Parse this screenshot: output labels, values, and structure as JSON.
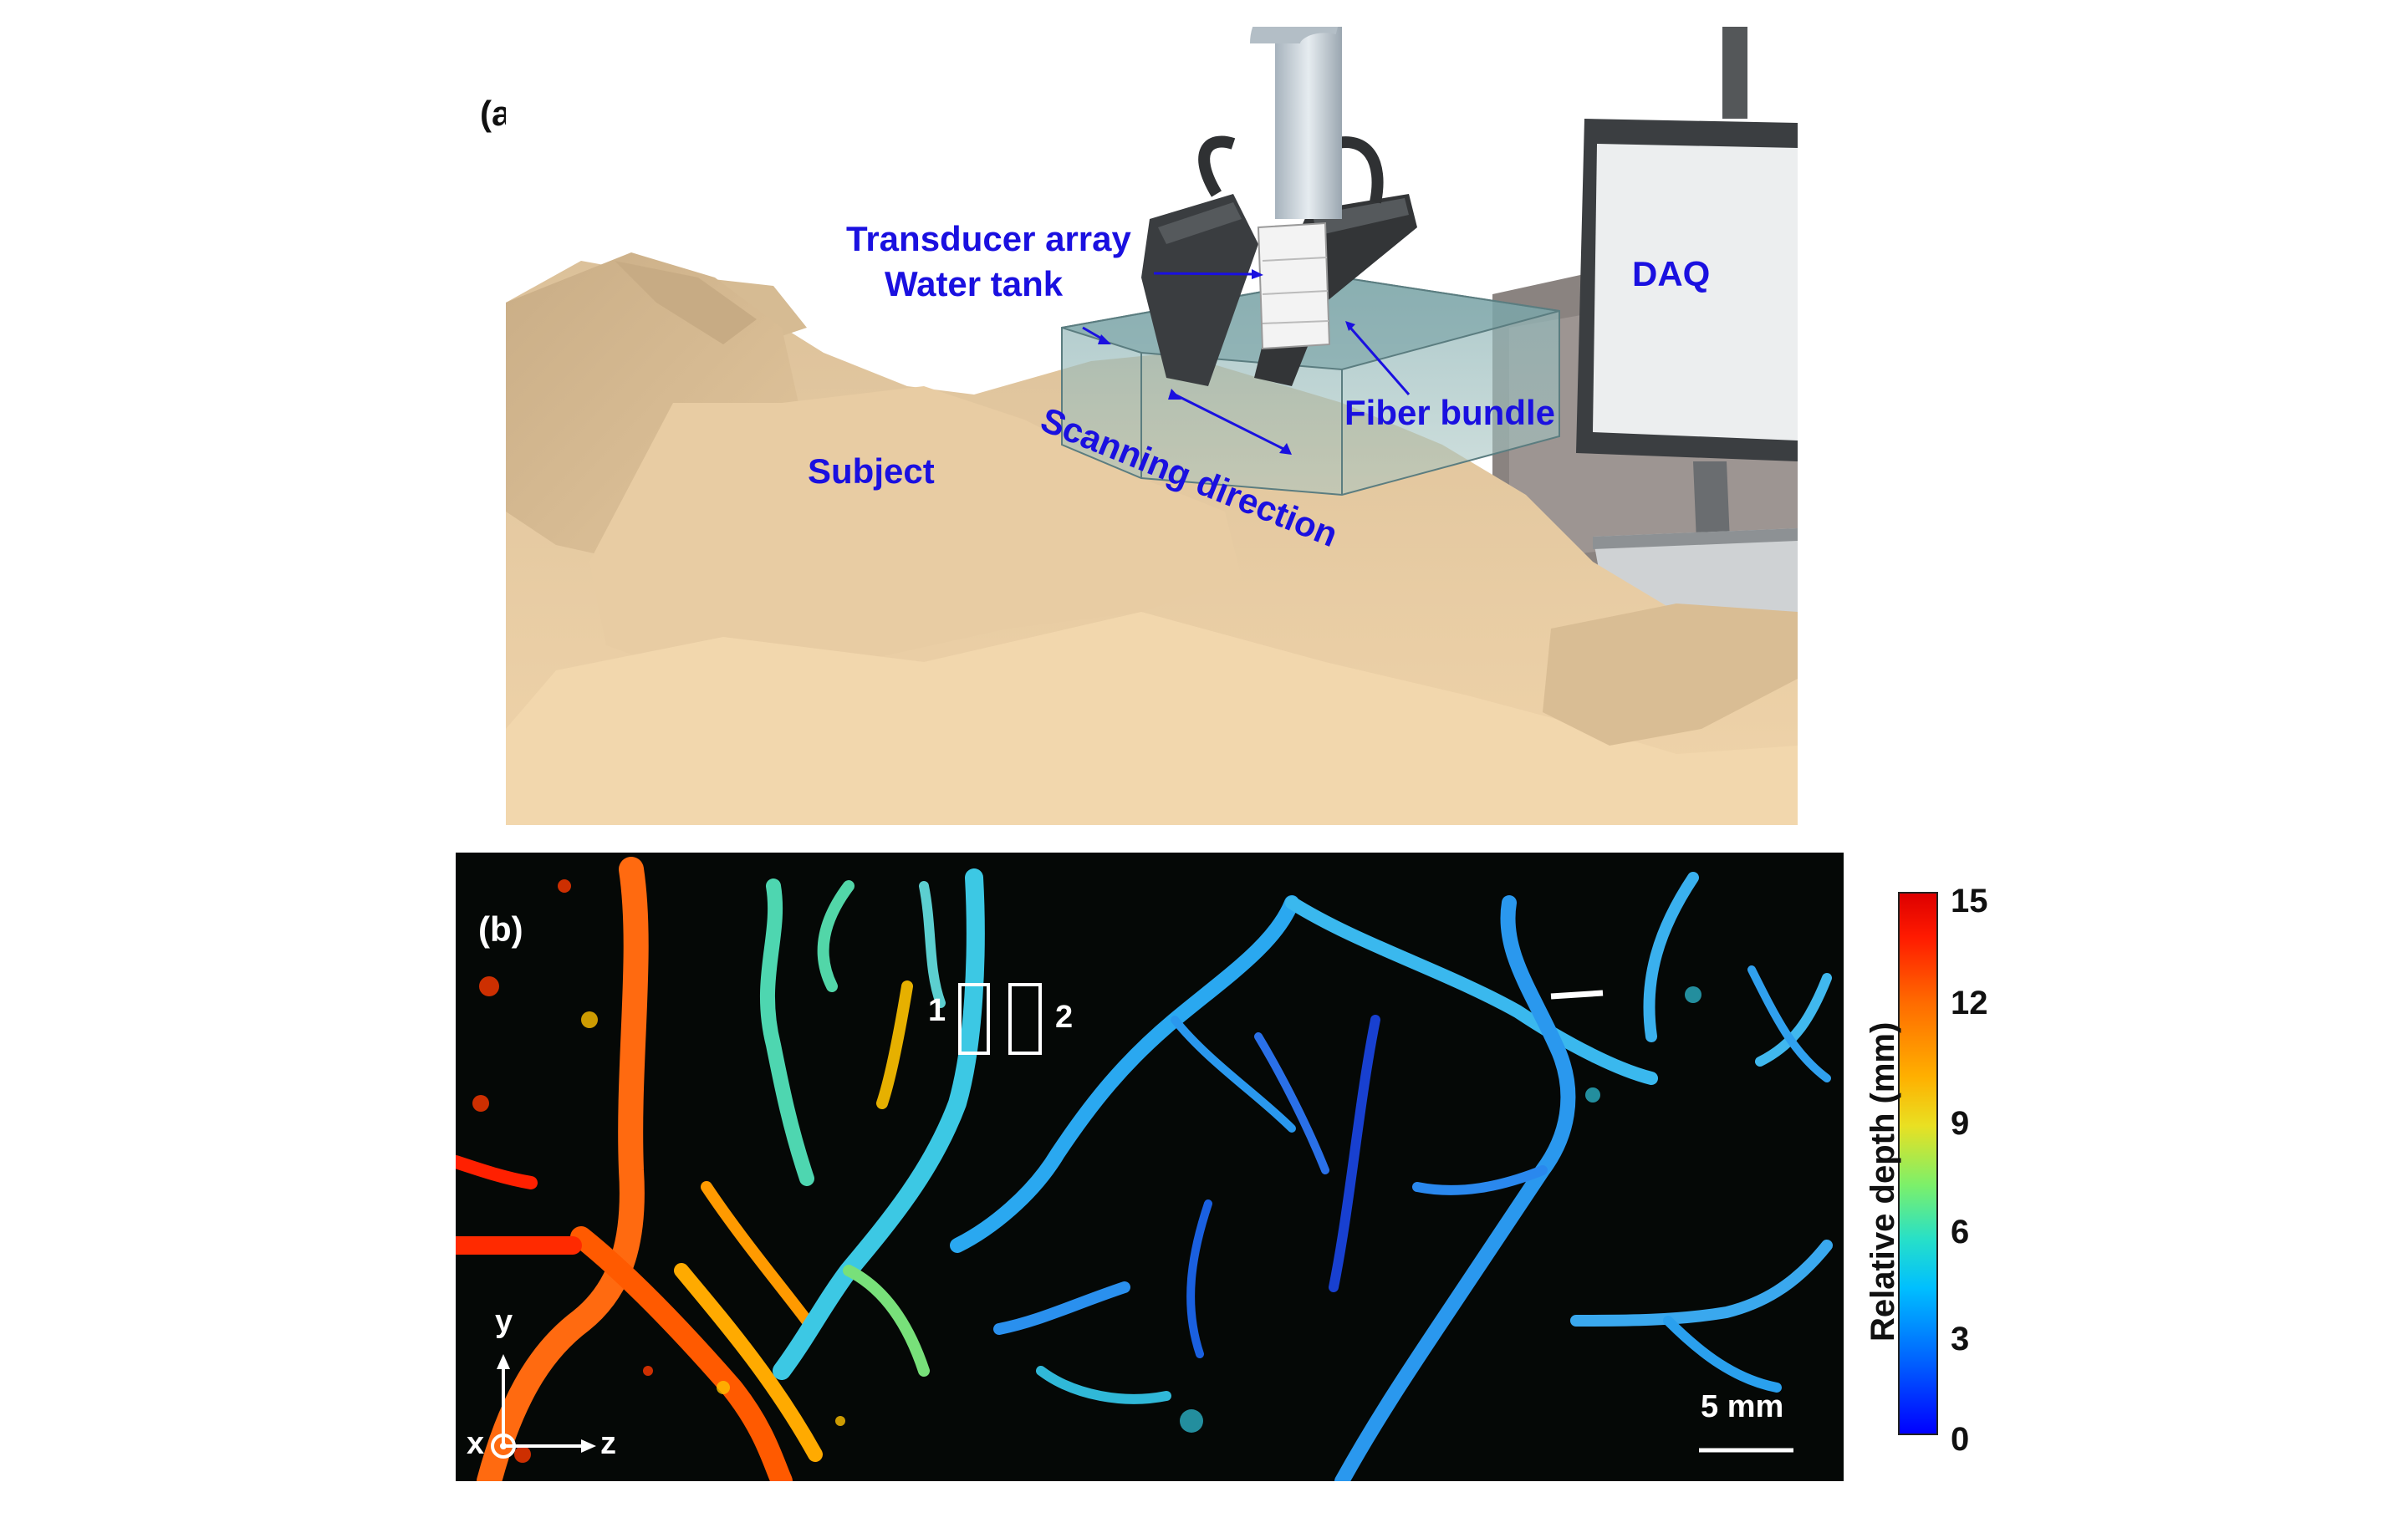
{
  "panel_a": {
    "label": "(a)",
    "annotations": {
      "transducer": "Transducer array",
      "water_tank": "Water tank",
      "daq": "DAQ",
      "fiber": "Fiber bundle",
      "scanning": "Scanning direction",
      "subject": "Subject"
    }
  },
  "panel_b": {
    "label": "(b)",
    "roi_1": "1",
    "roi_2": "2",
    "scale_bar": "5 mm",
    "axis_y": "y",
    "axis_z": "z",
    "axis_x": "x"
  },
  "colorbar": {
    "label": "Relative depth (mm)",
    "ticks": [
      "15",
      "12",
      "9",
      "6",
      "3",
      "0"
    ]
  }
}
